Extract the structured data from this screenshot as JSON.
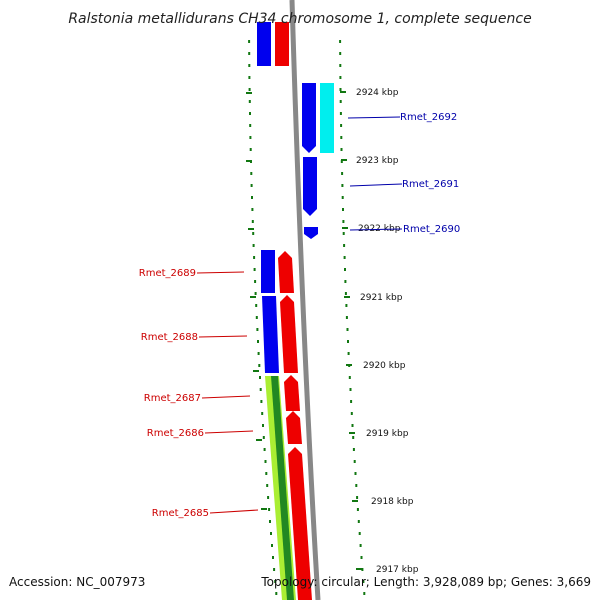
{
  "title": "Ralstonia metallidurans CH34 chromosome 1, complete sequence",
  "footer": {
    "accession": "Accession: NC_007973",
    "summary": "Topology: circular; Length: 3,928,089 bp; Genes: 3,669"
  },
  "colors": {
    "forward_cds": "#0000ee",
    "forward_cds_alt": "#00eeee",
    "reverse_cds": "#ee0000",
    "gc_skew": "#aaee33",
    "gc_skew_dark": "#228822",
    "backbone": "#888888",
    "tick": "#117711",
    "label_forward": "#0000aa",
    "label_reverse": "#cc0000"
  },
  "ticks": [
    {
      "label": "2924 kbp"
    },
    {
      "label": "2923 kbp"
    },
    {
      "label": "2922 kbp"
    },
    {
      "label": "2921 kbp"
    },
    {
      "label": "2920 kbp"
    },
    {
      "label": "2919 kbp"
    },
    {
      "label": "2918 kbp"
    },
    {
      "label": "2917 kbp"
    }
  ],
  "genes_forward": [
    {
      "name": "Rmet_2692"
    },
    {
      "name": "Rmet_2691"
    },
    {
      "name": "Rmet_2690"
    }
  ],
  "genes_reverse": [
    {
      "name": "Rmet_2689"
    },
    {
      "name": "Rmet_2688"
    },
    {
      "name": "Rmet_2687"
    },
    {
      "name": "Rmet_2686"
    },
    {
      "name": "Rmet_2685"
    }
  ]
}
